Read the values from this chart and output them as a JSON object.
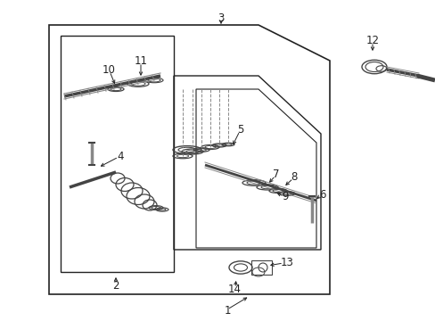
{
  "bg_color": "#ffffff",
  "line_color": "#222222",
  "part_color": "#444444",
  "gray_color": "#666666"
}
